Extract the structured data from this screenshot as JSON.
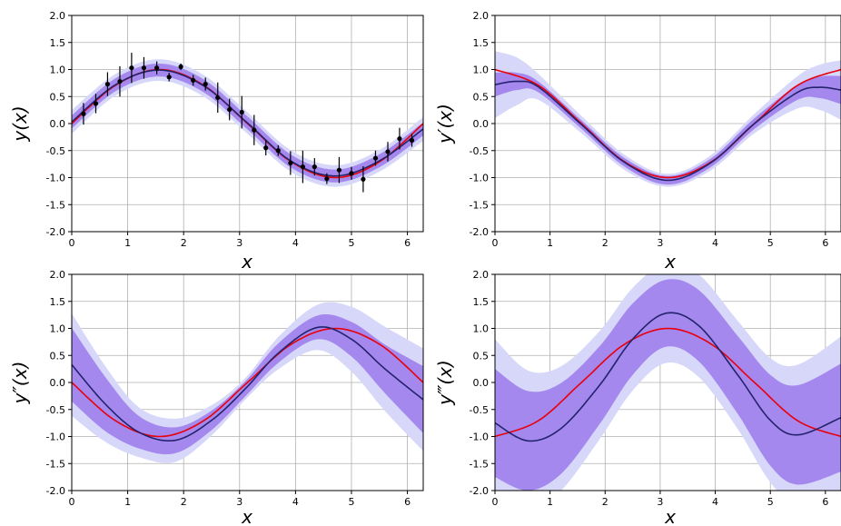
{
  "chart_data": [
    {
      "type": "line",
      "xlabel": "x",
      "ylabel": "y(x)",
      "xlim": [
        0,
        6.283
      ],
      "ylim": [
        -2.0,
        2.0
      ],
      "xticks": [
        "0",
        "1",
        "2",
        "3",
        "4",
        "5",
        "6"
      ],
      "yticks": [
        "-2.0",
        "-1.5",
        "-1.0",
        "-0.5",
        "0.0",
        "0.5",
        "1.0",
        "1.5",
        "2.0"
      ],
      "grid": true,
      "colors": {
        "true": "#e8000b",
        "predicted": "#23236e",
        "band_outer": "#d7d7fa",
        "band_inner": "#a488ee",
        "points": "#000000"
      },
      "series": [
        {
          "role": "true",
          "x": [
            0,
            0.785,
            1.571,
            2.356,
            3.142,
            3.927,
            4.712,
            5.498,
            6.283
          ],
          "y": [
            0.0,
            0.71,
            1.0,
            0.71,
            0.0,
            -0.71,
            -1.0,
            -0.71,
            0.0
          ]
        },
        {
          "role": "predicted",
          "x": [
            0,
            0.785,
            1.571,
            2.356,
            3.142,
            3.927,
            4.712,
            5.498,
            6.283
          ],
          "y": [
            0.03,
            0.72,
            0.99,
            0.7,
            0.01,
            -0.7,
            -0.97,
            -0.69,
            -0.1
          ]
        }
      ],
      "bands": {
        "inner_halfwidth": [
          0.12,
          0.12,
          0.12,
          0.12,
          0.12,
          0.12,
          0.12,
          0.12,
          0.12
        ],
        "outer_halfwidth": [
          0.22,
          0.2,
          0.2,
          0.2,
          0.2,
          0.2,
          0.2,
          0.2,
          0.22
        ]
      },
      "points": {
        "x": [
          0.21,
          0.43,
          0.64,
          0.86,
          1.07,
          1.29,
          1.52,
          1.74,
          1.95,
          2.17,
          2.39,
          2.61,
          2.82,
          3.04,
          3.26,
          3.47,
          3.69,
          3.91,
          4.13,
          4.34,
          4.56,
          4.78,
          5.0,
          5.21,
          5.43,
          5.65,
          5.86,
          6.08
        ],
        "y": [
          0.18,
          0.37,
          0.73,
          0.78,
          1.03,
          1.03,
          1.03,
          0.86,
          1.05,
          0.8,
          0.73,
          0.48,
          0.26,
          0.21,
          -0.12,
          -0.45,
          -0.5,
          -0.73,
          -0.8,
          -0.8,
          -1.02,
          -0.86,
          -0.92,
          -1.03,
          -0.64,
          -0.52,
          -0.28,
          -0.31
        ],
        "err": [
          0.2,
          0.18,
          0.22,
          0.28,
          0.28,
          0.2,
          0.12,
          0.08,
          0.06,
          0.1,
          0.12,
          0.28,
          0.2,
          0.3,
          0.28,
          0.14,
          0.1,
          0.22,
          0.3,
          0.16,
          0.1,
          0.24,
          0.12,
          0.24,
          0.14,
          0.18,
          0.2,
          0.12
        ]
      }
    },
    {
      "type": "line",
      "xlabel": "x",
      "ylabel": "y′(x)",
      "xlim": [
        0,
        6.283
      ],
      "ylim": [
        -2.0,
        2.0
      ],
      "xticks": [
        "0",
        "1",
        "2",
        "3",
        "4",
        "5",
        "6"
      ],
      "yticks": [
        "-2.0",
        "-1.5",
        "-1.0",
        "-0.5",
        "0.0",
        "0.5",
        "1.0",
        "1.5",
        "2.0"
      ],
      "grid": true,
      "colors": {
        "true": "#e8000b",
        "predicted": "#23236e",
        "band_outer": "#d7d7fa",
        "band_inner": "#a488ee"
      },
      "series": [
        {
          "role": "true",
          "x": [
            0,
            0.785,
            1.571,
            2.356,
            3.142,
            3.927,
            4.712,
            5.498,
            6.283
          ],
          "y": [
            1.0,
            0.71,
            0.0,
            -0.71,
            -1.0,
            -0.71,
            0.0,
            0.71,
            1.0
          ]
        },
        {
          "role": "predicted",
          "x": [
            0,
            0.4,
            0.785,
            1.571,
            2.356,
            3.142,
            3.927,
            4.712,
            5.498,
            5.9,
            6.283
          ],
          "y": [
            0.72,
            0.78,
            0.68,
            -0.02,
            -0.72,
            -1.05,
            -0.72,
            0.0,
            0.58,
            0.67,
            0.62
          ]
        }
      ],
      "bands": {
        "inner_halfwidth": [
          0.22,
          0.16,
          0.1,
          0.08,
          0.08,
          0.08,
          0.08,
          0.1,
          0.14,
          0.2,
          0.26
        ],
        "outer_halfwidth": [
          0.62,
          0.44,
          0.24,
          0.16,
          0.14,
          0.12,
          0.14,
          0.18,
          0.3,
          0.42,
          0.55
        ]
      }
    },
    {
      "type": "line",
      "xlabel": "x",
      "ylabel": "y″(x)",
      "xlim": [
        0,
        6.283
      ],
      "ylim": [
        -2.0,
        2.0
      ],
      "xticks": [
        "0",
        "1",
        "2",
        "3",
        "4",
        "5",
        "6"
      ],
      "yticks": [
        "-2.0",
        "-1.5",
        "-1.0",
        "-0.5",
        "0.0",
        "0.5",
        "1.0",
        "1.5",
        "2.0"
      ],
      "grid": true,
      "colors": {
        "true": "#e8000b",
        "predicted": "#23236e",
        "band_outer": "#d7d7fa",
        "band_inner": "#a488ee"
      },
      "series": [
        {
          "role": "true",
          "x": [
            0,
            0.785,
            1.571,
            2.356,
            3.142,
            3.927,
            4.712,
            5.498,
            6.283
          ],
          "y": [
            0.0,
            -0.71,
            -1.0,
            -0.71,
            0.0,
            0.71,
            1.0,
            0.71,
            0.0
          ]
        },
        {
          "role": "predicted",
          "x": [
            0,
            0.6,
            1.2,
            1.85,
            2.5,
            3.1,
            3.7,
            4.4,
            5.0,
            5.6,
            6.283
          ],
          "y": [
            0.33,
            -0.4,
            -0.92,
            -1.07,
            -0.7,
            -0.12,
            0.55,
            1.02,
            0.8,
            0.25,
            -0.32
          ]
        }
      ],
      "bands": {
        "inner_halfwidth": [
          0.68,
          0.5,
          0.3,
          0.24,
          0.18,
          0.14,
          0.18,
          0.22,
          0.32,
          0.45,
          0.62
        ],
        "outer_halfwidth": [
          0.95,
          0.7,
          0.46,
          0.4,
          0.28,
          0.2,
          0.3,
          0.42,
          0.6,
          0.78,
          0.95
        ]
      }
    },
    {
      "type": "line",
      "xlabel": "x",
      "ylabel": "y‴(x)",
      "xlim": [
        0,
        6.283
      ],
      "ylim": [
        -2.0,
        2.0
      ],
      "xticks": [
        "0",
        "1",
        "2",
        "3",
        "4",
        "5",
        "6"
      ],
      "yticks": [
        "-2.0",
        "-1.5",
        "-1.0",
        "-0.5",
        "0.0",
        "0.5",
        "1.0",
        "1.5",
        "2.0"
      ],
      "grid": true,
      "colors": {
        "true": "#e8000b",
        "predicted": "#23236e",
        "band_outer": "#d7d7fa",
        "band_inner": "#a488ee"
      },
      "series": [
        {
          "role": "true",
          "x": [
            0,
            0.785,
            1.571,
            2.356,
            3.142,
            3.927,
            4.712,
            5.498,
            6.283
          ],
          "y": [
            -1.0,
            -0.71,
            0.0,
            0.71,
            1.0,
            0.71,
            0.0,
            -0.71,
            -1.0
          ]
        },
        {
          "role": "predicted",
          "x": [
            0,
            0.6,
            1.2,
            1.9,
            2.5,
            3.1,
            3.7,
            4.4,
            5.0,
            5.5,
            6.283
          ],
          "y": [
            -0.75,
            -1.08,
            -0.85,
            -0.05,
            0.8,
            1.28,
            1.05,
            0.15,
            -0.7,
            -0.97,
            -0.65
          ]
        }
      ],
      "bands": {
        "inner_halfwidth": [
          1.0,
          0.92,
          0.84,
          0.72,
          0.66,
          0.62,
          0.66,
          0.72,
          0.84,
          0.92,
          1.0
        ],
        "outer_halfwidth": [
          1.55,
          1.3,
          1.15,
          1.0,
          0.95,
          0.92,
          0.95,
          1.0,
          1.15,
          1.3,
          1.5
        ]
      }
    }
  ]
}
